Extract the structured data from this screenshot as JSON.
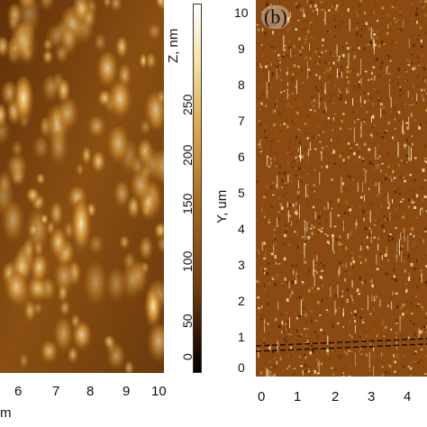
{
  "panel_a": {
    "x_ticks": [
      "6",
      "7",
      "8",
      "9",
      "10"
    ],
    "x_unit_fragment": "m"
  },
  "colorbar": {
    "title": "Z, nm",
    "ticks": [
      "0",
      "50",
      "100",
      "150",
      "200",
      "250"
    ]
  },
  "panel_b": {
    "label": "(b)",
    "y_axis_label": "Y, um",
    "y_ticks": [
      "0",
      "1",
      "2",
      "3",
      "4",
      "5",
      "6",
      "7",
      "8",
      "9",
      "10"
    ],
    "x_ticks": [
      "0",
      "1",
      "2",
      "3",
      "4"
    ]
  },
  "colors": {
    "afm_dark": "#3a1a05",
    "afm_mid": "#9a5a14",
    "afm_light": "#f4e2a8",
    "colorbar_top": "#ffffff",
    "colorbar_bottom": "#000000"
  }
}
